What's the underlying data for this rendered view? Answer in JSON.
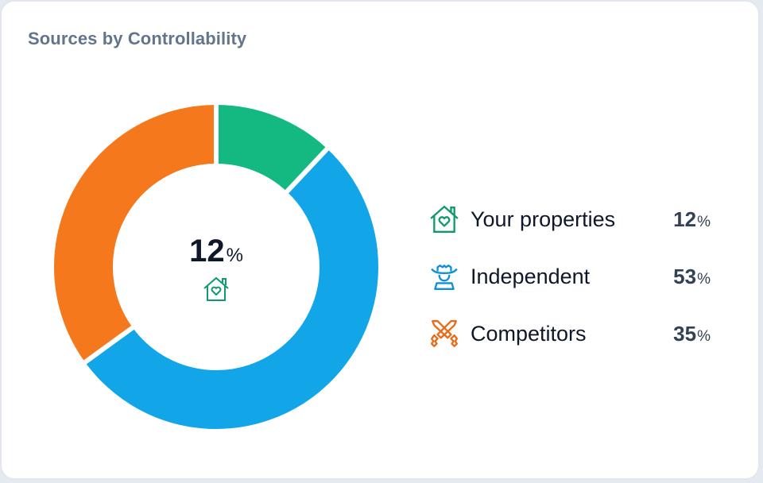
{
  "card": {
    "title": "Sources by Controllability"
  },
  "center": {
    "value": "12",
    "unit": "%",
    "icon": "house-heart-icon"
  },
  "legend": [
    {
      "label": "Your properties",
      "value": "12",
      "unit": "%",
      "icon": "house-heart-icon",
      "color": "#12b981"
    },
    {
      "label": "Independent",
      "value": "53",
      "unit": "%",
      "icon": "cowboy-icon",
      "color": "#0f8fd6"
    },
    {
      "label": "Competitors",
      "value": "35",
      "unit": "%",
      "icon": "crossed-swords-icon",
      "color": "#f0711d"
    }
  ],
  "colors": {
    "your_properties": "#13b981",
    "independent": "#12a6e8",
    "competitors": "#f6781c",
    "title": "#64748b"
  },
  "chart_data": {
    "type": "pie",
    "title": "Sources by Controllability",
    "categories": [
      "Your properties",
      "Independent",
      "Competitors"
    ],
    "values": [
      12,
      53,
      35
    ],
    "unit": "%",
    "colors": [
      "#13b981",
      "#12a6e8",
      "#f6781c"
    ],
    "donut": true,
    "center_label": "12%",
    "legend_position": "right"
  }
}
